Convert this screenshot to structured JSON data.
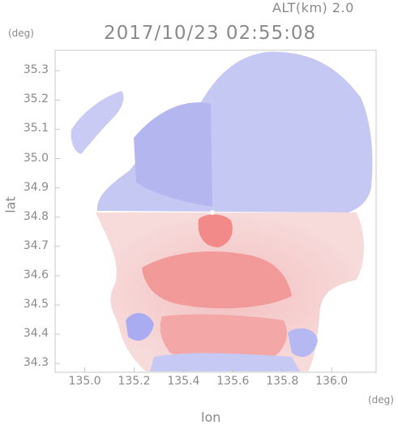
{
  "header": {
    "altitude": "ALT(km) 2.0",
    "timestamp": "2017/10/23 02:55:08"
  },
  "axes": {
    "y_unit": "(deg)",
    "x_unit": "(deg)",
    "ylabel": "lat",
    "xlabel": "lon"
  },
  "chart_data": {
    "type": "heatmap",
    "x_ticks": [
      "135.0",
      "135.2",
      "135.4",
      "135.6",
      "135.8",
      "136.0"
    ],
    "y_ticks": [
      "35.3",
      "35.2",
      "35.1",
      "35.0",
      "34.9",
      "34.8",
      "34.7",
      "34.6",
      "34.5",
      "34.4",
      "34.3"
    ],
    "xlim": [
      134.88,
      136.18
    ],
    "ylim": [
      34.27,
      35.37
    ],
    "radar_center": [
      135.52,
      34.82
    ],
    "colors": {
      "positive": "#f08080",
      "negative": "#7a7aee",
      "neutral": "#ffffff",
      "frame": "#c8c8c8",
      "text": "#8a8a8a"
    }
  }
}
